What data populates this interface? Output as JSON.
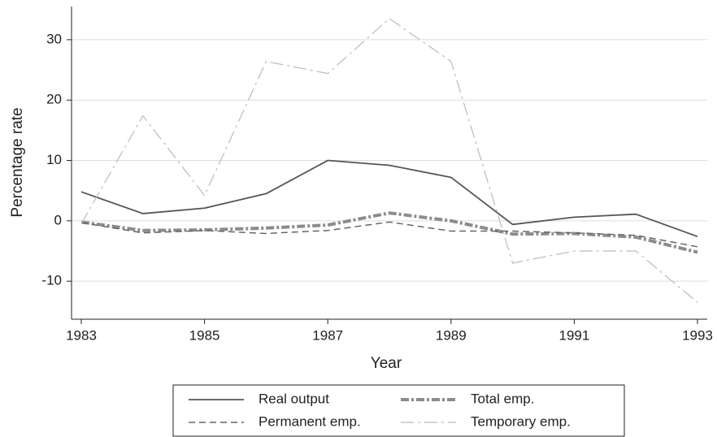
{
  "chart_data": {
    "type": "line",
    "x_label": "Year",
    "y_label": "Percentage rate",
    "x": [
      1983,
      1984,
      1985,
      1986,
      1987,
      1988,
      1989,
      1990,
      1991,
      1992,
      1993
    ],
    "series": [
      {
        "name": "Real output",
        "color": "#555555",
        "values": [
          4.8,
          1.2,
          2.1,
          4.5,
          10.0,
          9.2,
          7.2,
          -0.6,
          0.6,
          1.1,
          -2.6
        ]
      },
      {
        "name": "Total emp.",
        "color": "#8c8c8c",
        "values": [
          -0.2,
          -1.6,
          -1.5,
          -1.2,
          -0.7,
          1.3,
          0.0,
          -2.2,
          -2.1,
          -2.7,
          -5.2
        ]
      },
      {
        "name": "Permanent emp.",
        "color": "#666666",
        "values": [
          -0.3,
          -2.0,
          -1.6,
          -2.1,
          -1.6,
          -0.2,
          -1.7,
          -1.7,
          -2.0,
          -2.4,
          -4.3
        ]
      },
      {
        "name": "Temporary emp.",
        "color": "#bbbbbb",
        "values": [
          -0.5,
          17.4,
          4.2,
          26.4,
          24.4,
          33.5,
          26.4,
          -7.0,
          -5.0,
          -5.0,
          -13.5
        ]
      }
    ],
    "xlim": [
      1983,
      1993
    ],
    "xticks": [
      1983,
      1985,
      1987,
      1989,
      1991,
      1993
    ],
    "ylim": [
      -16.3,
      35.5
    ],
    "yticks": [
      -10,
      0,
      10,
      20,
      30
    ],
    "grid": true
  }
}
